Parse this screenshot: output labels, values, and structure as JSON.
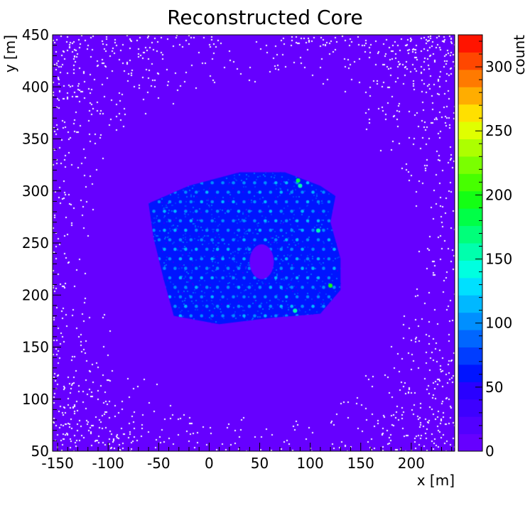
{
  "chart_data": {
    "type": "heatmap",
    "title": "Reconstructed Core",
    "xlabel": "x [m]",
    "ylabel": "y [m]",
    "zlabel": "count",
    "xlim": [
      -155,
      243
    ],
    "ylim": [
      50,
      450
    ],
    "zlim": [
      0,
      325
    ],
    "x_ticks": [
      -150,
      -100,
      -50,
      0,
      50,
      100,
      150,
      200
    ],
    "y_ticks": [
      50,
      100,
      150,
      200,
      250,
      300,
      350,
      400,
      450
    ],
    "z_ticks": [
      0,
      50,
      100,
      150,
      200,
      250,
      300
    ],
    "background_level": 20,
    "array_region": {
      "polygon": [
        [
          -60,
          288
        ],
        [
          -20,
          305
        ],
        [
          30,
          318
        ],
        [
          75,
          318
        ],
        [
          110,
          305
        ],
        [
          125,
          295
        ],
        [
          120,
          270
        ],
        [
          130,
          235
        ],
        [
          130,
          205
        ],
        [
          110,
          182
        ],
        [
          60,
          178
        ],
        [
          10,
          172
        ],
        [
          -35,
          180
        ],
        [
          -45,
          215
        ],
        [
          -55,
          255
        ]
      ],
      "level": 75
    },
    "detector_grid": {
      "x_start": -60,
      "x_end": 125,
      "y_start": 180,
      "y_end": 312,
      "spacing": 10.5,
      "level": 95
    },
    "hotspots": [
      {
        "x": 88,
        "y": 310,
        "value": 180
      },
      {
        "x": 90,
        "y": 305,
        "value": 160
      },
      {
        "x": 120,
        "y": 209,
        "value": 190
      },
      {
        "x": 108,
        "y": 262,
        "value": 150
      },
      {
        "x": 85,
        "y": 185,
        "value": 150
      }
    ],
    "hole": {
      "x": 52,
      "y": 232,
      "r": 12
    },
    "colors": {
      "background": "#6600ff",
      "empty_bin": "#ffffff",
      "palette": [
        "#6600ff",
        "#5200ff",
        "#3d00ff",
        "#2900ff",
        "#0014ff",
        "#003dff",
        "#0066ff",
        "#008fff",
        "#00b8ff",
        "#00e0ff",
        "#00ffe0",
        "#00ffad",
        "#00ff7a",
        "#00ff47",
        "#14ff14",
        "#47ff00",
        "#7aff00",
        "#adff00",
        "#e0ff00",
        "#ffe000",
        "#ffad00",
        "#ff7a00",
        "#ff4700",
        "#ff1400"
      ]
    }
  }
}
